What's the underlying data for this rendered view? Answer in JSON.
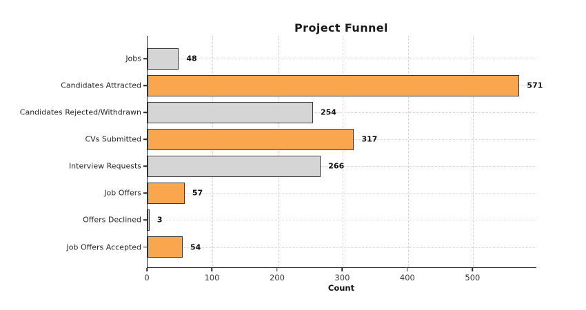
{
  "chart_data": {
    "type": "bar",
    "orientation": "horizontal",
    "title": "Project Funnel",
    "xlabel": "Count",
    "categories": [
      "Jobs",
      "Candidates Attracted",
      "Candidates Rejected/Withdrawn",
      "CVs Submitted",
      "Interview Requests",
      "Job Offers",
      "Offers Declined",
      "Job Offers Accepted"
    ],
    "values": [
      48,
      571,
      254,
      317,
      266,
      57,
      3,
      54
    ],
    "bar_colors": [
      "#d5d5d5",
      "#f9a64e",
      "#d5d5d5",
      "#f9a64e",
      "#d5d5d5",
      "#f9a64e",
      "#d5d5d5",
      "#f9a64e"
    ],
    "bar_edge_color": "#3a3a3a",
    "x_ticks": [
      0,
      100,
      200,
      300,
      400,
      500
    ],
    "xlim": [
      0,
      597
    ],
    "grid": "dotted, both axes, behind bars",
    "legend": "none",
    "accent_orange": "#f9a64e",
    "accent_gray": "#d5d5d5"
  }
}
